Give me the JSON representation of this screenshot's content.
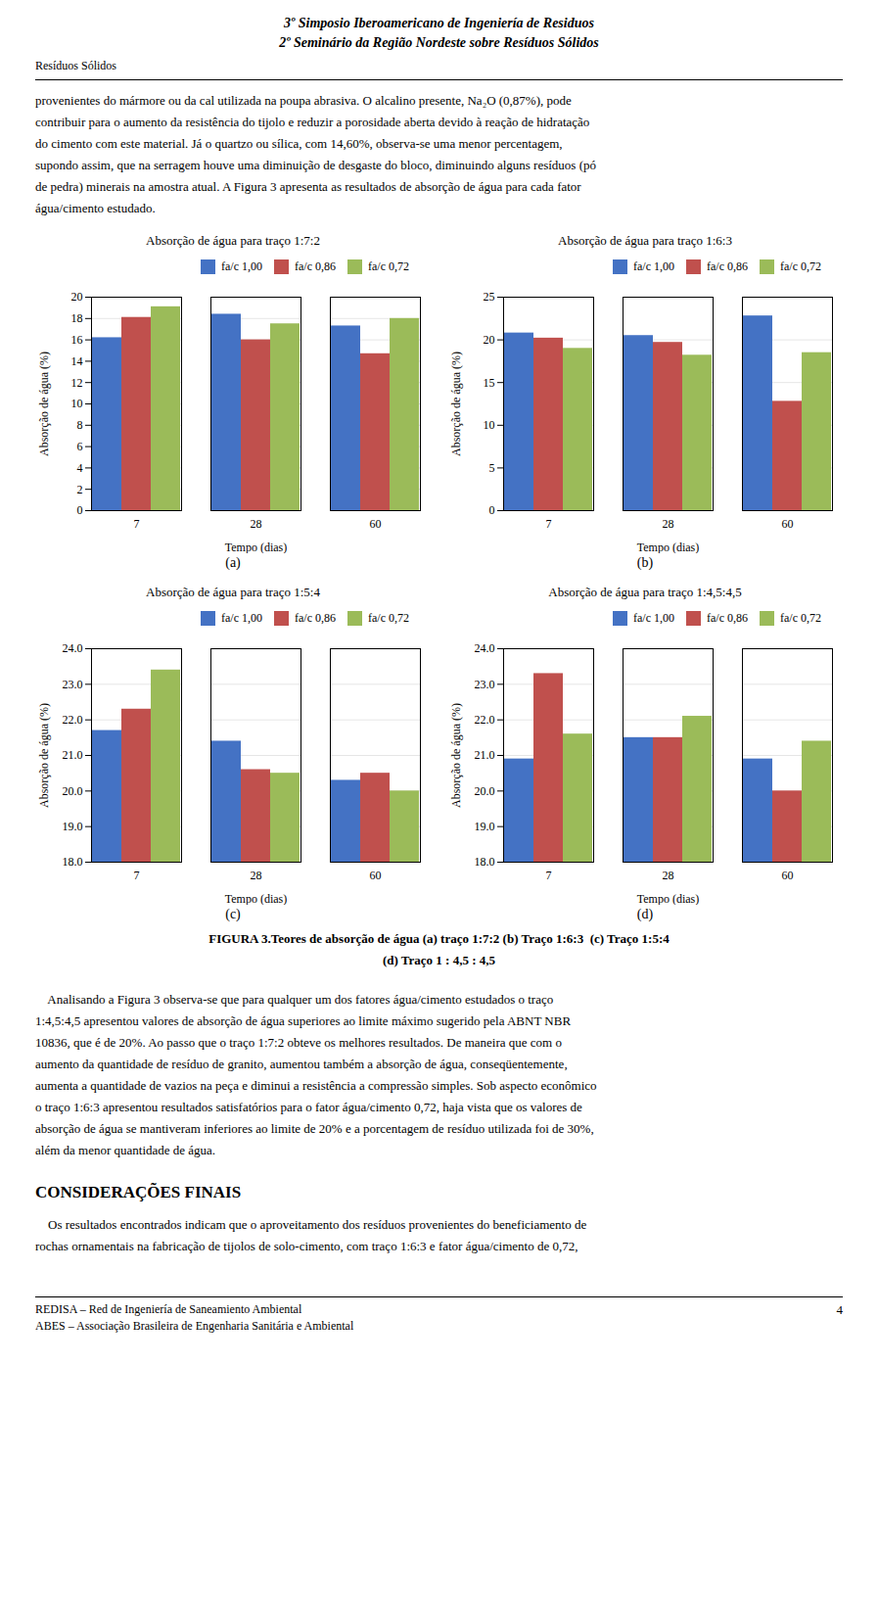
{
  "header": [
    "3º Simposio Iberoamericano de Ingeniería de Residuos",
    "2º Seminário da Região Nordeste sobre Resíduos Sólidos"
  ],
  "header_left": "Resíduos Sólidos",
  "body1": [
    "provenientes do mármore ou da cal utilizada na poupa abrasiva. O alcalino presente, Na₂O (0,87%), pode",
    "contribuir para o aumento da resistência do tijolo e reduzir a porosidade aberta devido à reação de hidratação",
    "do cimento com este material. Já o quartzo ou sílica, com 14,60%, observa-se uma menor percentagem,",
    "supondo assim, que na serragem houve uma diminuição de desgaste do bloco, diminuindo alguns resíduos (pó",
    "de pedra) minerais na amostra atual. A Figura 3 apresenta as resultados de absorção de água para cada fator",
    "água/cimento estudado."
  ],
  "chart_data": [
    {
      "type": "bar",
      "title": "Absorção de água para traço 1:7:2",
      "caption": "(a)",
      "xlabel": "Tempo (dias)",
      "ylabel": "Absorção de água (%)",
      "categories": [
        "7",
        "28",
        "60"
      ],
      "series": [
        {
          "name": "fa/c 1,00",
          "color": "#4472C4",
          "values": [
            16.2,
            18.4,
            17.3
          ]
        },
        {
          "name": "fa/c 0,86",
          "color": "#C0504D",
          "values": [
            18.1,
            16.0,
            14.7
          ]
        },
        {
          "name": "fa/c 0,72",
          "color": "#9BBB59",
          "values": [
            19.1,
            17.5,
            18.0
          ]
        }
      ],
      "ylim": [
        0,
        20
      ],
      "yticks": [
        0,
        2,
        4,
        6,
        8,
        10,
        12,
        14,
        16,
        18,
        20
      ],
      "grid": true,
      "legend": "upper right"
    },
    {
      "type": "bar",
      "title": "Absorção de água para traço 1:6:3",
      "caption": "(b)",
      "xlabel": "Tempo (dias)",
      "ylabel": "Absorção de água (%)",
      "categories": [
        "7",
        "28",
        "60"
      ],
      "series": [
        {
          "name": "fa/c 1,00",
          "color": "#4472C4",
          "values": [
            20.8,
            20.5,
            22.8
          ]
        },
        {
          "name": "fa/c 0,86",
          "color": "#C0504D",
          "values": [
            20.2,
            19.7,
            12.8
          ]
        },
        {
          "name": "fa/c 0,72",
          "color": "#9BBB59",
          "values": [
            19.0,
            18.2,
            18.5
          ]
        }
      ],
      "ylim": [
        0,
        25
      ],
      "yticks": [
        0,
        5,
        10,
        15,
        20,
        25
      ],
      "grid": true,
      "legend": "upper right"
    },
    {
      "type": "bar",
      "title": "Absorção de água para traço 1:5:4",
      "caption": "(c)",
      "xlabel": "Tempo (dias)",
      "ylabel": "Absorção de água (%)",
      "categories": [
        "7",
        "28",
        "60"
      ],
      "series": [
        {
          "name": "fa/c 1,00",
          "color": "#4472C4",
          "values": [
            21.7,
            21.4,
            20.3
          ]
        },
        {
          "name": "fa/c 0,86",
          "color": "#C0504D",
          "values": [
            22.3,
            20.6,
            20.5
          ]
        },
        {
          "name": "fa/c 0,72",
          "color": "#9BBB59",
          "values": [
            23.4,
            20.5,
            20.0
          ]
        }
      ],
      "ylim": [
        18,
        24
      ],
      "yticks": [
        18,
        19,
        20,
        21,
        22,
        23,
        24
      ],
      "grid": true,
      "legend": "upper right"
    },
    {
      "type": "bar",
      "title": "Absorção de água para traço 1:4,5:4,5",
      "caption": "(d)",
      "xlabel": "Tempo (dias)",
      "ylabel": "Absorção de água (%)",
      "categories": [
        "7",
        "28",
        "60"
      ],
      "series": [
        {
          "name": "fa/c 1,00",
          "color": "#4472C4",
          "values": [
            20.9,
            21.5,
            20.9
          ]
        },
        {
          "name": "fa/c 0,86",
          "color": "#C0504D",
          "values": [
            23.3,
            21.5,
            20.0
          ]
        },
        {
          "name": "fa/c 0,72",
          "color": "#9BBB59",
          "values": [
            21.6,
            22.1,
            21.4
          ]
        }
      ],
      "ylim": [
        18,
        24
      ],
      "yticks": [
        18,
        19,
        20,
        21,
        22,
        23,
        24
      ],
      "grid": true,
      "legend": "upper right"
    }
  ],
  "figure_caption": [
    "FIGURA 3.Teores de absorção de água (a) traço 1:7:2 (b) Traço 1:6:3  (c) Traço 1:5:4",
    "(d) Traço 1 : 4,5 : 4,5"
  ],
  "body2": [
    "    Analisando a Figura 3 observa-se que para qualquer um dos fatores água/cimento estudados o traço",
    "1:4,5:4,5 apresentou valores de absorção de água superiores ao limite máximo sugerido pela ABNT NBR",
    "10836, que é de 20%. Ao passo que o traço 1:7:2 obteve os melhores resultados. De maneira que com o",
    "aumento da quantidade de resíduo de granito, aumentou também a absorção de água, conseqüentemente,",
    "aumenta a quantidade de vazios na peça e diminui a resistência a compressão simples. Sob aspecto econômico",
    "o traço 1:6:3 apresentou resultados satisfatórios para o fator água/cimento 0,72, haja vista que os valores de",
    "absorção de água se mantiveram inferiores ao limite de 20% e a porcentagem de resíduo utilizada foi de 30%,",
    "além da menor quantidade de água."
  ],
  "section_title": "CONSIDERAÇÕES FINAIS",
  "body3": [
    "    Os resultados encontrados indicam que o aproveitamento dos resíduos provenientes do beneficiamento de",
    "rochas ornamentais na fabricação de tijolos de solo-cimento, com traço 1:6:3 e fator água/cimento de 0,72,"
  ],
  "footer": [
    "REDISA – Red de Ingeniería de Saneamiento Ambiental",
    "ABES – Associação Brasileira de Engenharia Sanitária e Ambiental"
  ],
  "page_number": "4"
}
